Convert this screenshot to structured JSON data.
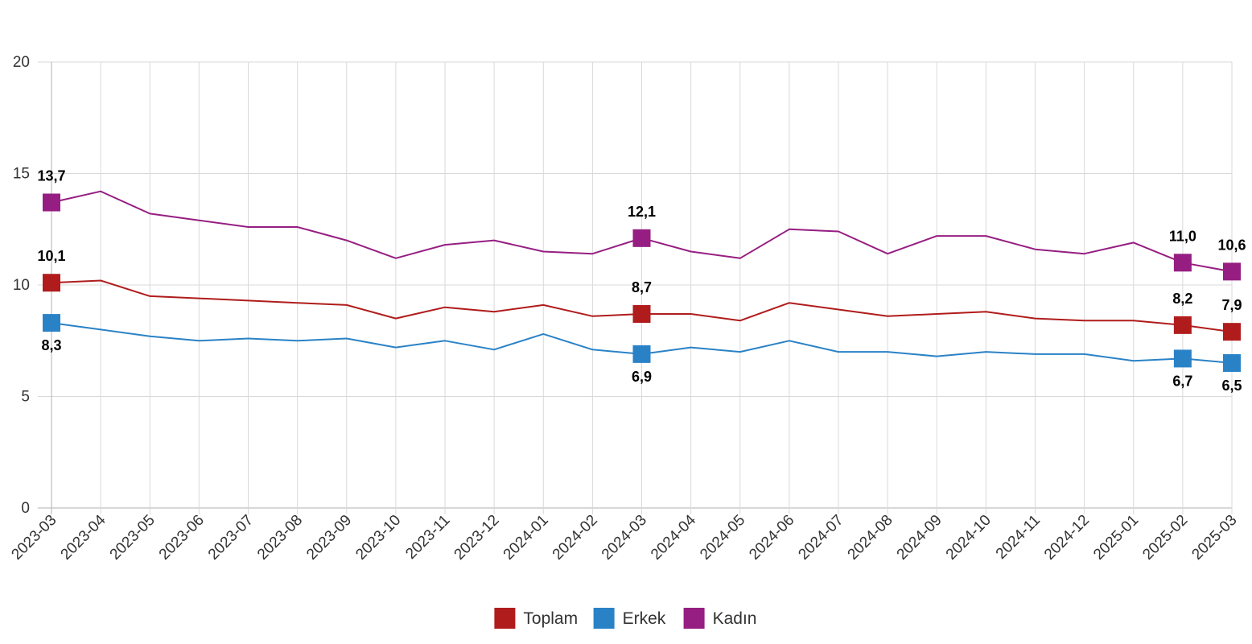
{
  "chart_data": {
    "type": "line",
    "categories": [
      "2023-03",
      "2023-04",
      "2023-05",
      "2023-06",
      "2023-07",
      "2023-08",
      "2023-09",
      "2023-10",
      "2023-11",
      "2023-12",
      "2024-01",
      "2024-02",
      "2024-03",
      "2024-04",
      "2024-05",
      "2024-06",
      "2024-07",
      "2024-08",
      "2024-09",
      "2024-10",
      "2024-11",
      "2024-12",
      "2025-01",
      "2025-02",
      "2025-03"
    ],
    "series": [
      {
        "name": "Toplam",
        "color": "#b01c1c",
        "values": [
          10.1,
          10.2,
          9.5,
          9.4,
          9.3,
          9.2,
          9.1,
          8.5,
          9.0,
          8.8,
          9.1,
          8.6,
          8.7,
          8.7,
          8.4,
          9.2,
          8.9,
          8.6,
          8.7,
          8.8,
          8.5,
          8.4,
          8.4,
          8.2,
          7.9
        ]
      },
      {
        "name": "Erkek",
        "color": "#2a82c6",
        "values": [
          8.3,
          8.0,
          7.7,
          7.5,
          7.6,
          7.5,
          7.6,
          7.2,
          7.5,
          7.1,
          7.8,
          7.1,
          6.9,
          7.2,
          7.0,
          7.5,
          7.0,
          7.0,
          6.8,
          7.0,
          6.9,
          6.9,
          6.6,
          6.7,
          6.5
        ]
      },
      {
        "name": "Kadın",
        "color": "#961e82",
        "values": [
          13.7,
          14.2,
          13.2,
          12.9,
          12.6,
          12.6,
          12.0,
          11.2,
          11.8,
          12.0,
          11.5,
          11.4,
          12.1,
          11.5,
          11.2,
          12.5,
          12.4,
          11.4,
          12.2,
          12.2,
          11.6,
          11.4,
          11.9,
          11.0,
          10.6
        ]
      }
    ],
    "highlighted_points": [
      0,
      12,
      23,
      24
    ],
    "data_labels": {
      "Toplam": [
        "10,1",
        "8,7",
        "8,2",
        "7,9"
      ],
      "Erkek": [
        "8,3",
        "6,9",
        "6,7",
        "6,5"
      ],
      "Kadın": [
        "13,7",
        "12,1",
        "11,0",
        "10,6"
      ]
    },
    "ylim": [
      0,
      20
    ],
    "yticks": [
      0,
      5,
      10,
      15,
      20
    ],
    "grid": true,
    "legend_position": "bottom-center"
  }
}
